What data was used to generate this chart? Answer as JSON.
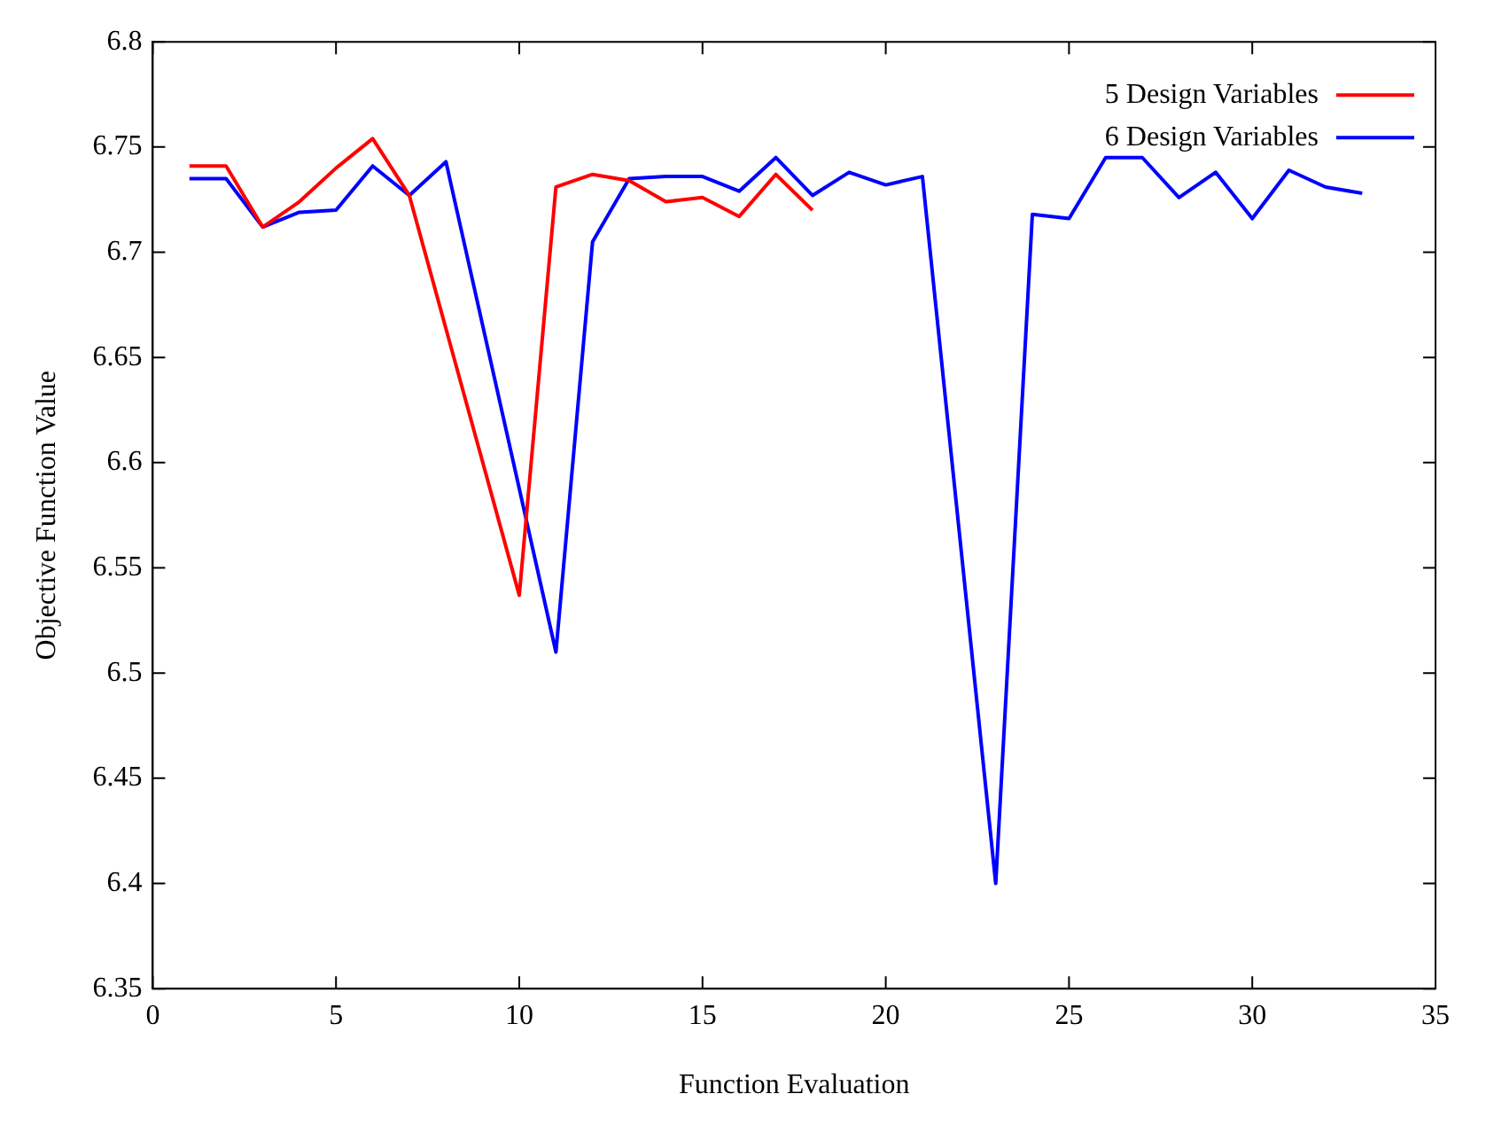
{
  "chart_data": {
    "type": "line",
    "xlabel": "Function Evaluation",
    "ylabel": "Objective Function Value",
    "xlim": [
      0,
      35
    ],
    "xticks": [
      0,
      5,
      10,
      15,
      20,
      25,
      30,
      35
    ],
    "ylim": [
      6.35,
      6.8
    ],
    "yticks": [
      6.35,
      6.4,
      6.45,
      6.5,
      6.55,
      6.6,
      6.65,
      6.7,
      6.75,
      6.8
    ],
    "grid": false,
    "legend": "top right",
    "marker": "none",
    "line_style": "solid",
    "series": [
      {
        "name": "5 Design Variables",
        "color": "#ff0000",
        "x": [
          1,
          2,
          3,
          4,
          5,
          6,
          7,
          10,
          11,
          12,
          13,
          14,
          15,
          16,
          17,
          18
        ],
        "values": [
          6.741,
          6.741,
          6.712,
          6.724,
          6.74,
          6.754,
          6.727,
          6.537,
          6.731,
          6.737,
          6.734,
          6.724,
          6.726,
          6.717,
          6.737,
          6.72
        ]
      },
      {
        "name": "6 Design Variables",
        "color": "#0000ff",
        "x": [
          1,
          2,
          3,
          4,
          5,
          6,
          7,
          8,
          11,
          12,
          13,
          14,
          15,
          16,
          17,
          18,
          19,
          20,
          21,
          23,
          24,
          25,
          26,
          27,
          28,
          29,
          30,
          31,
          32,
          33
        ],
        "values": [
          6.735,
          6.735,
          6.712,
          6.719,
          6.72,
          6.741,
          6.727,
          6.743,
          6.51,
          6.705,
          6.735,
          6.736,
          6.736,
          6.729,
          6.745,
          6.727,
          6.738,
          6.732,
          6.736,
          6.4,
          6.718,
          6.716,
          6.745,
          6.745,
          6.726,
          6.738,
          6.716,
          6.739,
          6.731,
          6.728
        ]
      }
    ]
  }
}
